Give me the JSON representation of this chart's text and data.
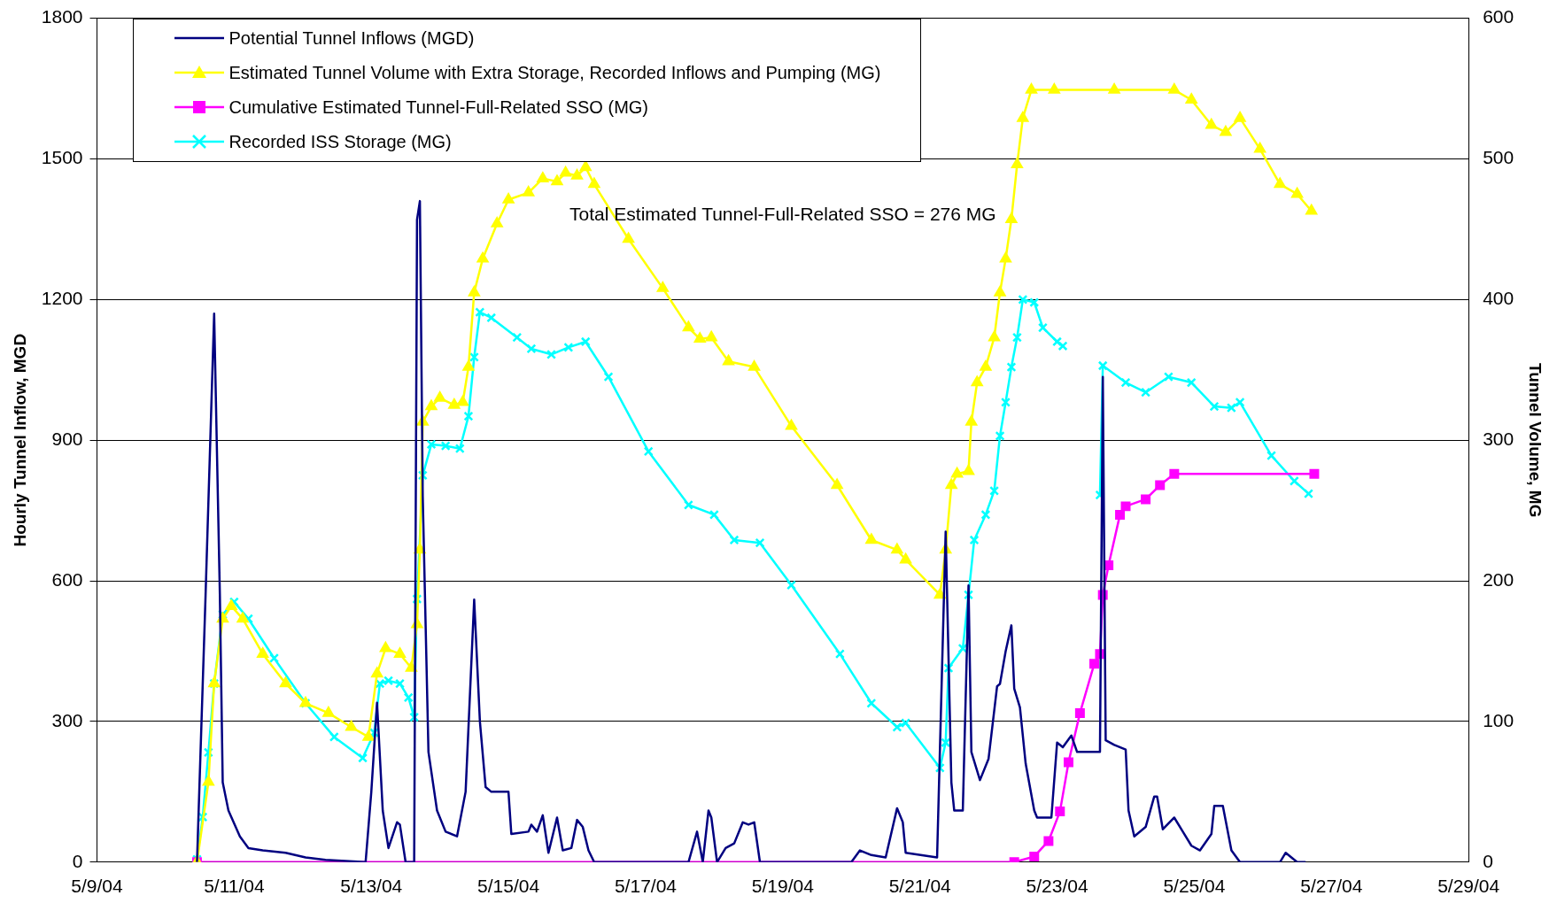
{
  "chart_data": {
    "type": "line",
    "ylabel": "Hourly Tunnel Inflow, MGD",
    "y2label": "Tunnel Volume, MG",
    "annotations": [
      "Total Estimated Tunnel-Full-Related SSO = 276 MG"
    ],
    "xlim": [
      "--05-09",
      "--05-29"
    ],
    "xticks": [
      {
        "value": "--05-09",
        "label": "5/9/04"
      },
      {
        "value": "--05-11",
        "label": "5/11/04"
      },
      {
        "value": "--05-13",
        "label": "5/13/04"
      },
      {
        "value": "--05-15",
        "label": "5/15/04"
      },
      {
        "value": "--05-17",
        "label": "5/17/04"
      },
      {
        "value": "--05-19",
        "label": "5/19/04"
      },
      {
        "value": "--05-21",
        "label": "5/21/04"
      },
      {
        "value": "--05-23",
        "label": "5/23/04"
      },
      {
        "value": "--05-25",
        "label": "5/25/04"
      },
      {
        "value": "--05-27",
        "label": "5/27/04"
      },
      {
        "value": "--05-29",
        "label": "5/29/04"
      }
    ],
    "ylim": [
      0,
      1800
    ],
    "yticks": [
      0,
      300,
      600,
      900,
      1200,
      1500,
      1800
    ],
    "y2lim": [
      0,
      600
    ],
    "y2ticks": [
      0,
      100,
      200,
      300,
      400,
      500,
      600
    ],
    "grid": "y",
    "legend": "top left",
    "series": [
      {
        "name": "Potential Tunnel Inflows (MGD)",
        "color": "#000080",
        "marker": "none",
        "x": [
          "--05-10T11:00",
          "--05-10T14:00",
          "--05-10T17:00",
          "--05-10T19:00",
          "--05-10T20:00",
          "--05-10T22:00",
          "--05-11T02:00",
          "--05-11T05:00",
          "--05-11T10:00",
          "--05-11T18:00",
          "--05-12T01:00",
          "--05-12T08:00",
          "--05-12T22:00",
          "--05-13T00:00",
          "--05-13T02:00",
          "--05-13T04:00",
          "--05-13T06:00",
          "--05-13T09:00",
          "--05-13T10:00",
          "--05-13T12:00",
          "--05-13T15:00",
          "--05-13T16:00",
          "--05-13T17:00",
          "--05-13T18:00",
          "--05-13T20:00",
          "--05-13T23:00",
          "--05-14T02:00",
          "--05-14T06:00",
          "--05-14T09:00",
          "--05-14T12:00",
          "--05-14T14:00",
          "--05-14T16:00",
          "--05-14T18:00",
          "--05-15T00:00",
          "--05-15T01:00",
          "--05-15T07:00",
          "--05-15T08:00",
          "--05-15T10:00",
          "--05-15T12:00",
          "--05-15T14:00",
          "--05-15T17:00",
          "--05-15T19:00",
          "--05-15T22:00",
          "--05-16T00:00",
          "--05-16T02:00",
          "--05-16T04:00",
          "--05-16T06:00",
          "--05-17T15:00",
          "--05-17T18:00",
          "--05-17T20:00",
          "--05-17T22:00",
          "--05-17T23:00",
          "--05-18T01:00",
          "--05-18T04:00",
          "--05-18T07:00",
          "--05-18T10:00",
          "--05-18T12:00",
          "--05-18T14:00",
          "--05-18T16:00",
          "--05-20T00:00",
          "--05-20T03:00",
          "--05-20T07:00",
          "--05-20T12:00",
          "--05-20T16:00",
          "--05-20T18:00",
          "--05-20T19:00",
          "--05-21T06:00",
          "--05-21T09:00",
          "--05-21T11:00",
          "--05-21T12:00",
          "--05-21T15:00",
          "--05-21T17:00",
          "--05-21T18:00",
          "--05-21T21:00",
          "--05-22T00:00",
          "--05-22T03:00",
          "--05-22T04:00",
          "--05-22T06:00",
          "--05-22T08:00",
          "--05-22T09:00",
          "--05-22T11:00",
          "--05-22T13:00",
          "--05-22T16:00",
          "--05-22T17:00",
          "--05-22T22:00",
          "--05-23T00:00",
          "--05-23T02:00",
          "--05-23T05:00",
          "--05-23T07:00",
          "--05-23T15:00",
          "--05-23T16:00",
          "--05-23T17:00",
          "--05-23T20:00",
          "--05-24T00:00",
          "--05-24T01:00",
          "--05-24T03:00",
          "--05-24T07:00",
          "--05-24T10:00",
          "--05-24T11:00",
          "--05-24T13:00",
          "--05-24T17:00",
          "--05-24T20:00",
          "--05-24T23:00",
          "--05-25T02:00",
          "--05-25T06:00",
          "--05-25T07:00",
          "--05-25T10:00",
          "--05-25T13:00",
          "--05-25T16:00",
          "--05-26T06:00",
          "--05-26T08:00",
          "--05-26T12:00",
          "--05-26T15:00"
        ],
        "values": [
          0,
          570,
          1170,
          570,
          170,
          110,
          55,
          30,
          25,
          20,
          10,
          5,
          0,
          150,
          340,
          110,
          30,
          85,
          80,
          0,
          0,
          1370,
          1410,
          780,
          235,
          110,
          65,
          55,
          150,
          560,
          300,
          160,
          150,
          150,
          60,
          65,
          80,
          65,
          100,
          20,
          95,
          25,
          30,
          90,
          75,
          25,
          0,
          0,
          65,
          0,
          110,
          95,
          0,
          30,
          40,
          85,
          80,
          85,
          0,
          0,
          25,
          15,
          10,
          115,
          85,
          20,
          10,
          705,
          170,
          110,
          110,
          590,
          235,
          175,
          220,
          375,
          380,
          450,
          505,
          370,
          330,
          210,
          110,
          95,
          95,
          255,
          245,
          270,
          235,
          235,
          1035,
          260,
          250,
          240,
          110,
          55,
          75,
          140,
          140,
          70,
          95,
          65,
          35,
          25,
          60,
          120,
          120,
          25,
          0,
          0,
          20,
          0,
          0
        ]
      },
      {
        "name": "Estimated Tunnel Volume with Extra Storage, Recorded Inflows and Pumping (MG)",
        "color": "#ffff00",
        "marker": "triangle",
        "axis": "y2",
        "x": [
          "--05-10T11:00",
          "--05-10T15:00",
          "--05-10T17:00",
          "--05-10T20:00",
          "--05-10T23:00",
          "--05-11T03:00",
          "--05-11T10:00",
          "--05-11T18:00",
          "--05-12T01:00",
          "--05-12T09:00",
          "--05-12T17:00",
          "--05-12T23:00",
          "--05-13T02:00",
          "--05-13T05:00",
          "--05-13T10:00",
          "--05-13T14:00",
          "--05-13T16:00",
          "--05-13T17:00",
          "--05-13T18:00",
          "--05-13T21:00",
          "--05-14T00:00",
          "--05-14T05:00",
          "--05-14T08:00",
          "--05-14T10:00",
          "--05-14T12:00",
          "--05-14T15:00",
          "--05-14T20:00",
          "--05-15T00:00",
          "--05-15T07:00",
          "--05-15T12:00",
          "--05-15T17:00",
          "--05-15T20:00",
          "--05-16T00:00",
          "--05-16T03:00",
          "--05-16T06:00",
          "--05-16T18:00",
          "--05-17T06:00",
          "--05-17T15:00",
          "--05-17T19:00",
          "--05-17T23:00",
          "--05-18T05:00",
          "--05-18T14:00",
          "--05-19T03:00",
          "--05-19T19:00",
          "--05-20T07:00",
          "--05-20T16:00",
          "--05-20T19:00",
          "--05-21T07:00",
          "--05-21T09:00",
          "--05-21T11:00",
          "--05-21T13:00",
          "--05-21T17:00",
          "--05-21T18:00",
          "--05-21T20:00",
          "--05-21T23:00",
          "--05-22T02:00",
          "--05-22T04:00",
          "--05-22T06:00",
          "--05-22T08:00",
          "--05-22T10:00",
          "--05-22T12:00",
          "--05-22T15:00",
          "--05-22T23:00",
          "--05-23T20:00",
          "--05-24T17:00",
          "--05-24T23:00",
          "--05-25T06:00",
          "--05-25T11:00",
          "--05-25T16:00",
          "--05-25T23:00",
          "--05-26T06:00",
          "--05-26T12:00",
          "--05-26T17:00"
        ],
        "values": [
          0,
          57,
          127,
          173,
          182,
          173,
          148,
          127,
          113,
          106,
          96,
          89,
          134,
          152,
          148,
          138,
          169,
          222,
          313,
          324,
          330,
          325,
          327,
          352,
          405,
          429,
          454,
          471,
          476,
          486,
          484,
          490,
          488,
          494,
          482,
          443,
          408,
          380,
          372,
          373,
          356,
          352,
          310,
          268,
          229,
          222,
          215,
          190,
          222,
          268,
          276,
          278,
          313,
          341,
          352,
          373,
          405,
          429,
          457,
          496,
          529,
          549,
          549,
          549,
          549,
          542,
          524,
          519,
          529,
          507,
          482,
          475,
          463
        ]
      },
      {
        "name": "Cumulative Estimated Tunnel-Full-Related SSO (MG)",
        "color": "#ff00ff",
        "marker": "square",
        "axis": "y2",
        "x": [
          "--05-10T11:00",
          "--05-22T09:00",
          "--05-22T16:00",
          "--05-22T21:00",
          "--05-23T01:00",
          "--05-23T04:00",
          "--05-23T08:00",
          "--05-23T13:00",
          "--05-23T15:00",
          "--05-23T16:00",
          "--05-23T18:00",
          "--05-23T22:00",
          "--05-24T00:00",
          "--05-24T07:00",
          "--05-24T12:00",
          "--05-24T17:00",
          "--05-26T18:00"
        ],
        "values": [
          0,
          0,
          4,
          15,
          36,
          71,
          106,
          141,
          148,
          190,
          211,
          247,
          253,
          258,
          268,
          276,
          276
        ]
      },
      {
        "name": "Recorded ISS Storage (MG)",
        "color": "#00ffff",
        "marker": "cross",
        "axis": "y2",
        "x": [
          "--05-10T11:00",
          "--05-10T13:00",
          "--05-10T15:00",
          "--05-10T17:00",
          "--05-10T20:00",
          "--05-11T00:00",
          "--05-11T05:00",
          "--05-11T14:00",
          "--05-12T01:00",
          "--05-12T11:00",
          "--05-12T21:00",
          "--05-13T01:00",
          "--05-13T03:00",
          "--05-13T06:00",
          "--05-13T10:00",
          "--05-13T13:00",
          "--05-13T15:00",
          "--05-13T16:00",
          "--05-13T18:00",
          "--05-13T21:00",
          "--05-14T02:00",
          "--05-14T07:00",
          "--05-14T10:00",
          "--05-14T12:00",
          "--05-14T14:00",
          "--05-14T18:00",
          "--05-15T03:00",
          "--05-15T08:00",
          "--05-15T15:00",
          "--05-15T21:00",
          "--05-16T03:00",
          "--05-16T11:00",
          "--05-17T01:00",
          "--05-17T15:00",
          "--05-18T00:00",
          "--05-18T07:00",
          "--05-18T16:00",
          "--05-19T03:00",
          "--05-19T20:00",
          "--05-20T07:00",
          "--05-20T16:00",
          "--05-20T19:00",
          "--05-21T07:00",
          "--05-21T09:00",
          "--05-21T10:00",
          "--05-21T15:00",
          "--05-21T17:00",
          "--05-21T19:00",
          "--05-21T23:00",
          "--05-22T02:00",
          "--05-22T04:00",
          "--05-22T06:00",
          "--05-22T08:00",
          "--05-22T10:00",
          "--05-22T12:00",
          "--05-22T16:00",
          "--05-22T19:00",
          "--05-23T00:00",
          "--05-23T02:00",
          "--05-23T08:00",
          "--05-23T15:00",
          "--05-23T16:00",
          "--05-24T00:00",
          "--05-24T07:00",
          "--05-24T15:00",
          "--05-24T23:00",
          "--05-25T07:00",
          "--05-25T13:00",
          "--05-25T16:00",
          "--05-26T03:00",
          "--05-26T11:00",
          "--05-26T16:00"
        ],
        "values": [
          2,
          32,
          78,
          127,
          176,
          185,
          173,
          145,
          113,
          89,
          74,
          92,
          127,
          129,
          127,
          117,
          103,
          187,
          275,
          297,
          296,
          294,
          317,
          359,
          391,
          387,
          373,
          365,
          361,
          366,
          370,
          345,
          292,
          254,
          247,
          229,
          227,
          197,
          148,
          113,
          96,
          99,
          67,
          85,
          138,
          152,
          190,
          229,
          247,
          264,
          303,
          327,
          352,
          373,
          400,
          398,
          380,
          370,
          367,
          null,
          261,
          353,
          341,
          334,
          345,
          341,
          324,
          323,
          327,
          289,
          271,
          262
        ]
      }
    ]
  }
}
